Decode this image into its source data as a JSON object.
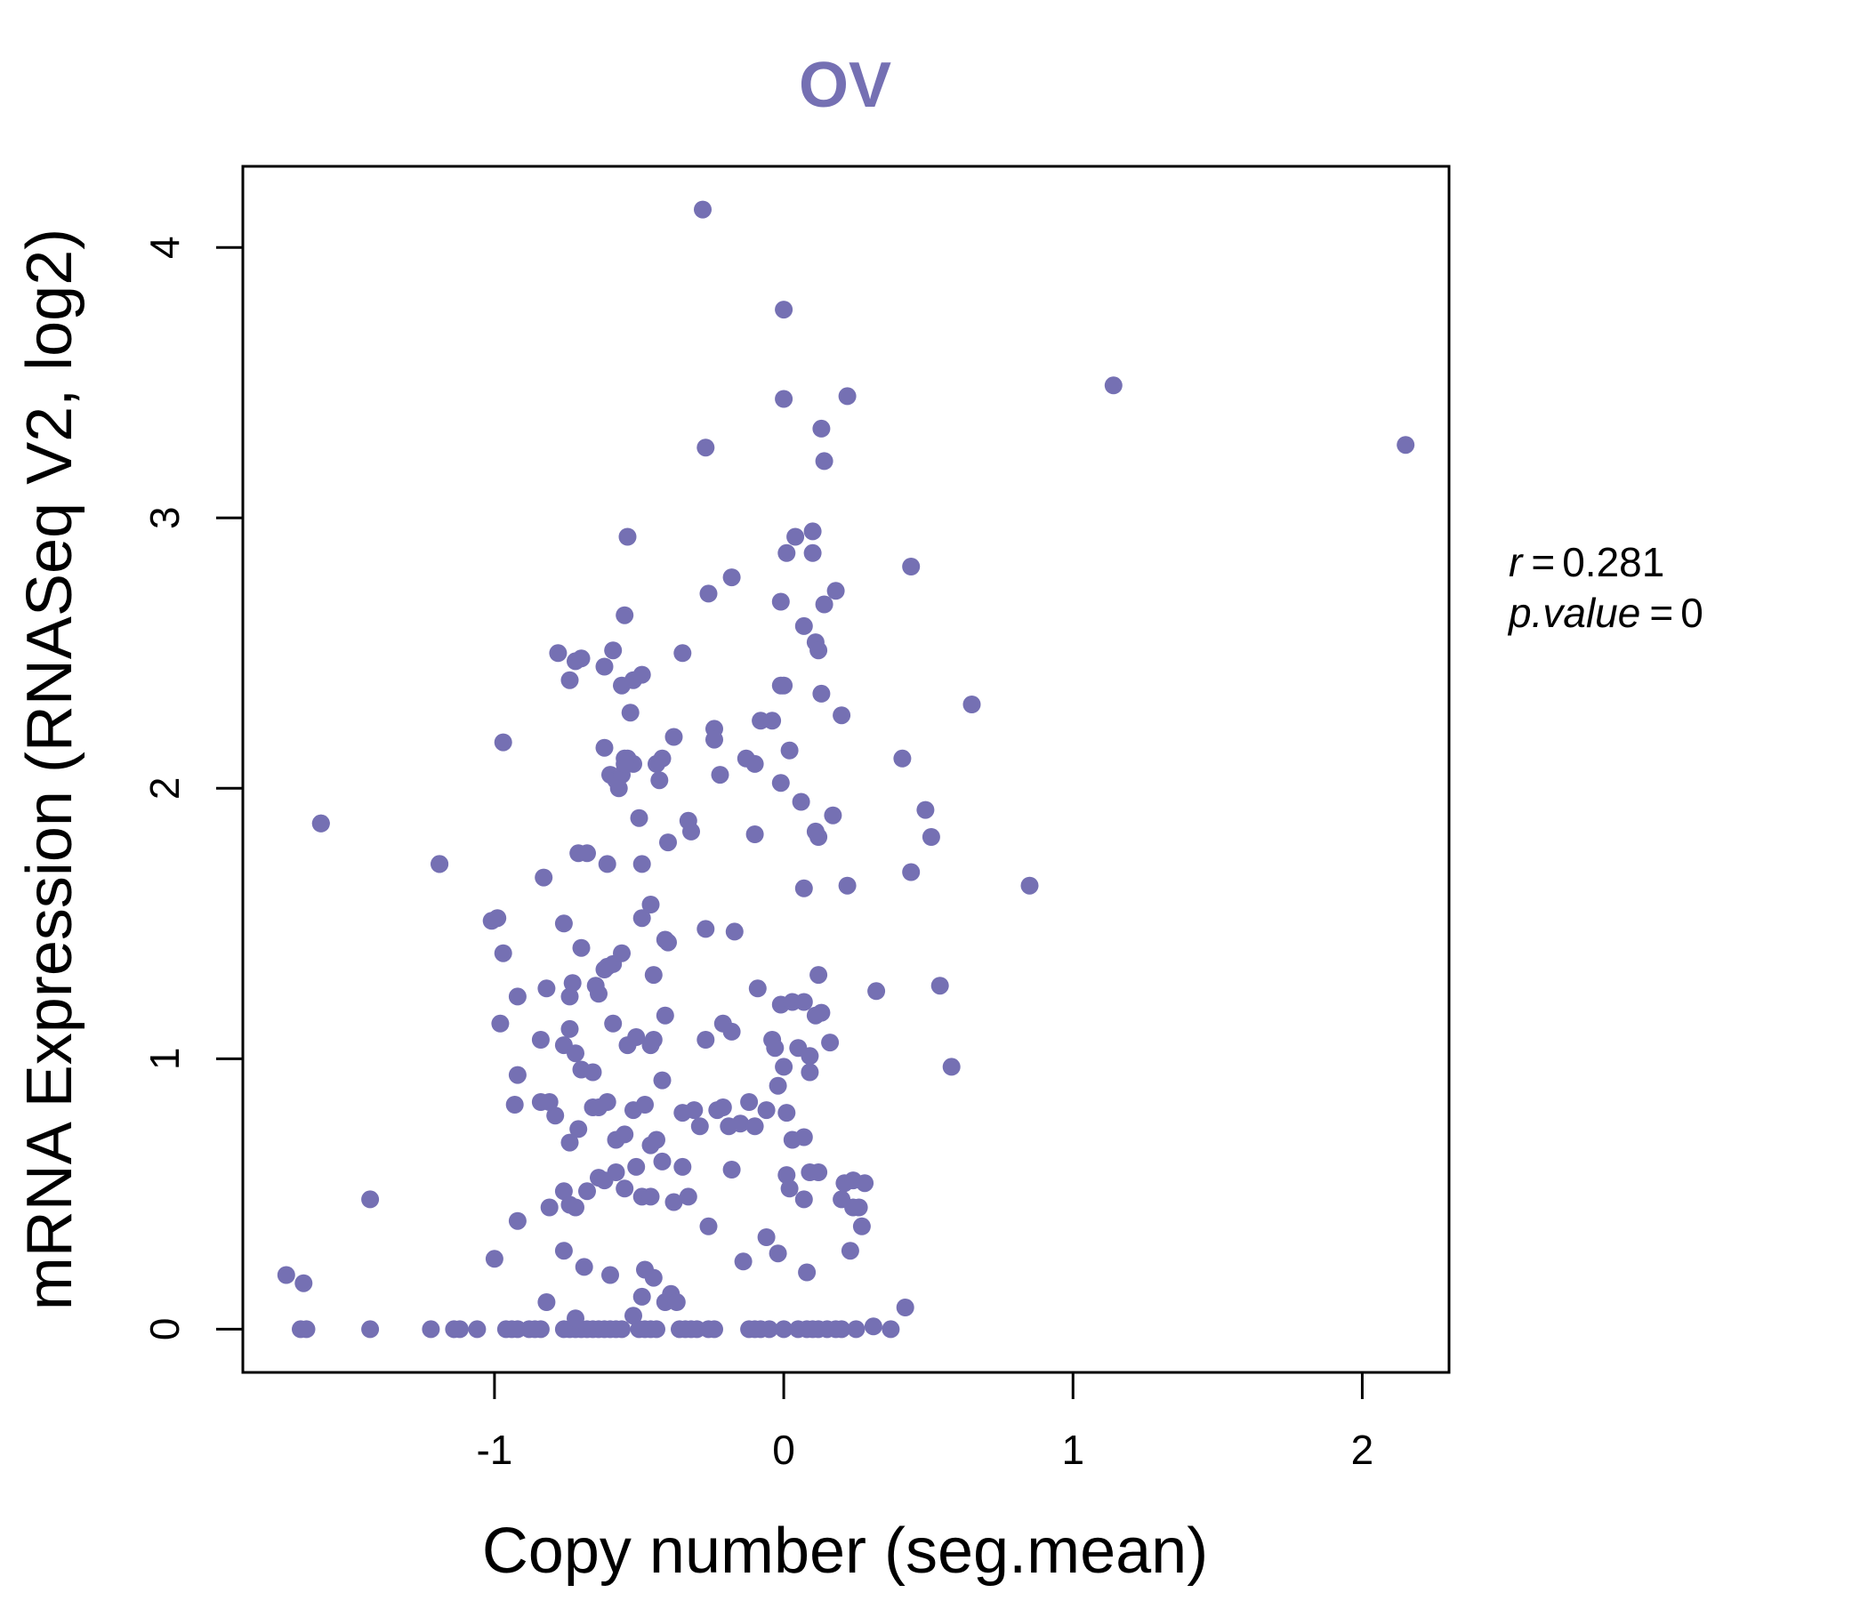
{
  "chart_data": {
    "type": "scatter",
    "title": "OV",
    "xlabel": "Copy number (seg.mean)",
    "ylabel": "mRNA Expression (RNASeq V2, log2)",
    "xlim": [
      -1.87,
      2.3
    ],
    "ylim": [
      -0.16,
      4.3
    ],
    "xticks": [
      -1,
      0,
      1,
      2
    ],
    "xtick_labels": [
      "-1",
      "0",
      "1",
      "2"
    ],
    "yticks": [
      0,
      1,
      2,
      3,
      4
    ],
    "ytick_labels": [
      "0",
      "1",
      "2",
      "3",
      "4"
    ],
    "grid": false,
    "point_color": "#7570b3",
    "stats": {
      "r_label": "r",
      "r_value": "0.281",
      "p_label": "p.value",
      "p_value": "0"
    },
    "x": [
      -1.72,
      -1.66,
      -1.67,
      -1.65,
      -1.43,
      -1.43,
      -1.6,
      -1.19,
      -1.22,
      -1.14,
      -1.12,
      -1.06,
      -0.96,
      -0.94,
      -0.92,
      -0.88,
      -0.86,
      -0.84,
      -0.76,
      -0.74,
      -0.72,
      -0.7,
      -0.68,
      -0.66,
      -0.64,
      -0.62,
      -0.6,
      -0.58,
      -0.56,
      -0.5,
      -0.48,
      -0.46,
      -0.44,
      -0.36,
      -0.34,
      -0.32,
      -0.3,
      -0.26,
      -0.24,
      -0.12,
      -0.1,
      -0.08,
      -0.05,
      0.0,
      0.05,
      0.08,
      0.1,
      0.12,
      0.15,
      0.18,
      0.2,
      0.25,
      0.31,
      0.37,
      -0.28,
      -0.27,
      -0.54,
      0.0,
      0.0,
      0.22,
      0.13,
      0.14,
      1.14,
      2.15,
      -0.26,
      -0.53,
      -0.18,
      -0.01,
      0.01,
      0.04,
      0.1,
      0.1,
      0.14,
      0.18,
      0.07,
      0.11,
      0.12,
      0.44,
      -0.55,
      -0.35,
      -0.59,
      -0.62,
      -0.78,
      -0.72,
      -0.7,
      -0.74,
      -0.56,
      -0.52,
      -0.49,
      -0.01,
      0.0,
      0.13,
      0.2,
      0.65,
      -0.97,
      -0.62,
      -0.55,
      -0.54,
      -0.52,
      -0.44,
      -0.42,
      -0.38,
      -0.24,
      -0.24,
      -0.22,
      -0.13,
      -0.1,
      -0.08,
      -0.04,
      -0.6,
      -0.58,
      -0.57,
      -0.56,
      -0.55,
      -0.5,
      -0.43,
      -0.33,
      -0.32,
      -0.1,
      -0.01,
      0.02,
      0.06,
      0.11,
      0.12,
      0.17,
      0.41,
      -1.6,
      -1.19,
      -0.83,
      -0.68,
      -0.71,
      -0.61,
      -0.49,
      -0.46,
      -0.4,
      -0.27,
      -0.17,
      0.07,
      0.22,
      0.44,
      0.49,
      0.51,
      0.85,
      -1.01,
      -0.99,
      -0.97,
      -0.92,
      -0.82,
      -0.76,
      -0.74,
      -0.73,
      -0.7,
      -0.64,
      -0.62,
      -0.59,
      -0.56,
      -0.49,
      -0.45,
      -0.41,
      -0.41,
      -0.98,
      -0.92,
      -0.84,
      -0.76,
      -0.74,
      -0.72,
      -0.7,
      -0.66,
      -0.65,
      -0.61,
      -0.59,
      -0.54,
      -0.51,
      -0.46,
      -0.45,
      -0.4,
      -0.27,
      -0.21,
      -0.18,
      -0.09,
      -0.04,
      -0.03,
      -0.01,
      0.0,
      0.03,
      0.05,
      0.07,
      0.09,
      0.09,
      0.11,
      0.12,
      0.13,
      0.16,
      0.32,
      0.54,
      0.58,
      -0.93,
      -0.84,
      -0.81,
      -0.79,
      -0.74,
      -0.71,
      -0.66,
      -0.64,
      -0.61,
      -0.58,
      -0.55,
      -0.52,
      -0.48,
      -0.46,
      -0.44,
      -0.42,
      -0.35,
      -0.31,
      -0.29,
      -0.23,
      -0.21,
      -0.19,
      -0.15,
      -0.12,
      -0.1,
      -0.06,
      -0.02,
      0.01,
      0.03,
      0.07,
      0.09,
      0.12,
      0.21,
      0.24,
      0.26,
      0.28,
      -0.92,
      -0.81,
      -0.76,
      -0.74,
      -0.72,
      -0.68,
      -0.64,
      -0.62,
      -0.58,
      -0.55,
      -0.51,
      -0.49,
      -0.46,
      -0.42,
      -0.38,
      -0.35,
      -0.33,
      -0.26,
      -0.18,
      -0.14,
      -0.06,
      -0.02,
      0.01,
      0.02,
      0.07,
      0.08,
      0.2,
      0.23,
      0.24,
      0.27,
      0.42,
      -1.0,
      -0.82,
      -0.76,
      -0.72,
      -0.69,
      -0.6,
      -0.52,
      -0.49,
      -0.48,
      -0.45,
      -0.41,
      -0.39,
      -0.37
    ],
    "y": [
      0.2,
      0.17,
      0.0,
      0.0,
      0.48,
      0.0,
      1.87,
      1.72,
      0.0,
      0.0,
      0.0,
      0.0,
      0.0,
      0.0,
      0.0,
      0.0,
      0.0,
      0.0,
      0.0,
      0.0,
      0.0,
      0.0,
      0.0,
      0.0,
      0.0,
      0.0,
      0.0,
      0.0,
      0.0,
      0.0,
      0.0,
      0.0,
      0.0,
      0.0,
      0.0,
      0.0,
      0.0,
      0.0,
      0.0,
      0.0,
      0.0,
      0.0,
      0.0,
      0.0,
      0.0,
      0.0,
      0.0,
      0.0,
      0.0,
      0.0,
      0.0,
      0.0,
      0.01,
      0.0,
      4.14,
      3.26,
      2.93,
      3.77,
      3.44,
      3.45,
      3.33,
      3.21,
      3.49,
      3.27,
      2.72,
      2.28,
      2.78,
      2.69,
      2.87,
      2.93,
      2.95,
      2.87,
      2.68,
      2.73,
      2.6,
      2.54,
      2.51,
      2.82,
      2.64,
      2.5,
      2.51,
      2.45,
      2.5,
      2.47,
      2.48,
      2.4,
      2.38,
      2.4,
      2.42,
      2.38,
      2.38,
      2.35,
      2.27,
      2.31,
      2.17,
      2.15,
      2.11,
      2.11,
      2.09,
      2.09,
      2.11,
      2.19,
      2.22,
      2.18,
      2.05,
      2.11,
      2.09,
      2.25,
      2.25,
      2.05,
      2.03,
      2.0,
      2.05,
      2.09,
      1.89,
      2.03,
      1.88,
      1.84,
      1.83,
      2.02,
      2.14,
      1.95,
      1.84,
      1.82,
      1.9,
      2.11,
      1.87,
      1.72,
      1.67,
      1.76,
      1.76,
      1.72,
      1.72,
      1.57,
      1.8,
      1.48,
      1.47,
      1.63,
      1.64,
      1.69,
      1.92,
      1.82,
      1.64,
      1.51,
      1.52,
      1.39,
      1.23,
      1.26,
      1.5,
      1.23,
      1.28,
      1.41,
      1.24,
      1.33,
      1.35,
      1.39,
      1.52,
      1.31,
      1.16,
      1.44,
      1.13,
      0.94,
      1.07,
      1.05,
      1.11,
      1.02,
      0.96,
      0.95,
      1.27,
      1.34,
      1.13,
      1.05,
      1.08,
      1.05,
      1.07,
      1.43,
      1.07,
      1.13,
      1.1,
      1.26,
      1.07,
      1.04,
      1.2,
      0.97,
      1.21,
      1.04,
      1.21,
      0.95,
      1.01,
      1.16,
      1.31,
      1.17,
      1.06,
      1.25,
      1.27,
      0.97,
      0.83,
      0.84,
      0.84,
      0.79,
      0.69,
      0.74,
      0.82,
      0.82,
      0.84,
      0.7,
      0.72,
      0.81,
      0.83,
      0.68,
      0.7,
      0.92,
      0.8,
      0.81,
      0.75,
      0.81,
      0.82,
      0.75,
      0.76,
      0.84,
      0.75,
      0.81,
      0.9,
      0.8,
      0.7,
      0.71,
      0.58,
      0.58,
      0.54,
      0.55,
      0.45,
      0.54,
      0.4,
      0.45,
      0.51,
      0.46,
      0.45,
      0.51,
      0.56,
      0.55,
      0.58,
      0.52,
      0.6,
      0.49,
      0.49,
      0.62,
      0.47,
      0.6,
      0.49,
      0.38,
      0.59,
      0.25,
      0.34,
      0.28,
      0.57,
      0.52,
      0.48,
      0.21,
      0.48,
      0.29,
      0.45,
      0.38,
      0.08,
      0.26,
      0.1,
      0.29,
      0.04,
      0.23,
      0.2,
      0.05,
      0.12,
      0.22,
      0.19,
      0.1,
      0.13,
      0.1
    ]
  }
}
